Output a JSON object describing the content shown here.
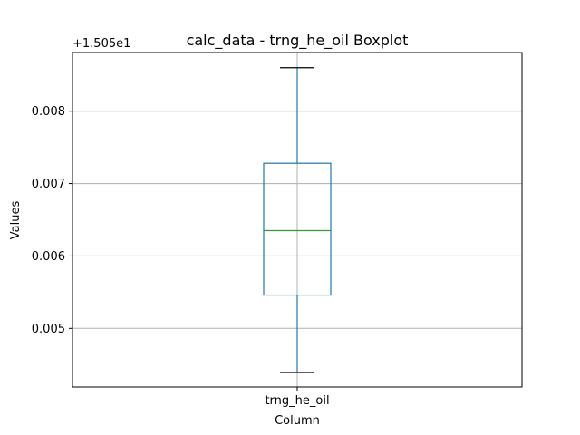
{
  "chart_data": {
    "type": "box",
    "title": "calc_data - trng_he_oil Boxplot",
    "xlabel": "Column",
    "ylabel": "Values",
    "offset_label": "+1.505e1",
    "categories": [
      "trng_he_oil"
    ],
    "boxes": [
      {
        "category": "trng_he_oil",
        "whisker_low": 0.00439,
        "q1": 0.00546,
        "median": 0.00635,
        "q3": 0.00728,
        "whisker_high": 0.0086
      }
    ],
    "ylim": [
      0.00419,
      0.00881
    ],
    "yticks": [
      0.005,
      0.006,
      0.007,
      0.008
    ],
    "ytick_labels": [
      "0.005",
      "0.006",
      "0.007",
      "0.008"
    ],
    "grid": true,
    "colors": {
      "box": "#1f77b4",
      "median": "#2ca02c",
      "whisker": "#1f77b4",
      "cap": "#000000",
      "grid": "#b0b0b0"
    }
  }
}
